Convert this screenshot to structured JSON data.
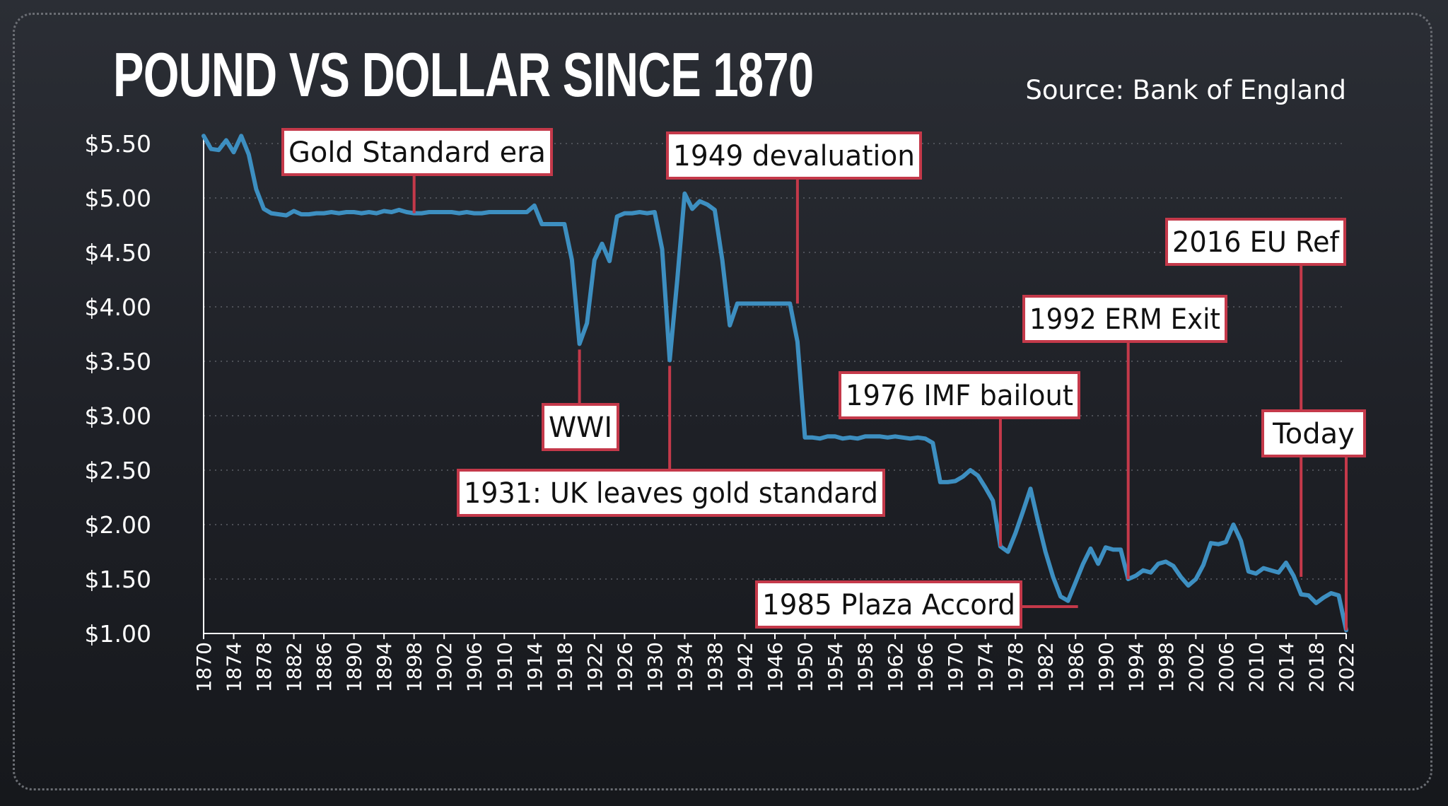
{
  "title": "POUND VS DOLLAR SINCE 1870",
  "source": "Source: Bank of England",
  "colors": {
    "line": "#3d8fc1",
    "annotation_border": "#c4394a",
    "background": "#24272d"
  },
  "chart_data": {
    "type": "line",
    "title": "POUND VS DOLLAR SINCE 1870",
    "xlabel": "",
    "ylabel": "",
    "xlim": [
      1870,
      2022
    ],
    "ylim": [
      1.0,
      5.5
    ],
    "grid": true,
    "y_ticks": [
      5.5,
      5.0,
      4.5,
      4.0,
      3.5,
      3.0,
      2.5,
      2.0,
      1.5,
      1.0
    ],
    "y_tick_labels": [
      "$5.50",
      "$5.00",
      "$4.50",
      "$4.00",
      "$3.50",
      "$3.00",
      "$2.50",
      "$2.00",
      "$1.50",
      "$1.00"
    ],
    "x_tick_labels": [
      "1870",
      "1874",
      "1878",
      "1882",
      "1886",
      "1890",
      "1894",
      "1898",
      "1902",
      "1906",
      "1910",
      "1914",
      "1918",
      "1922",
      "1926",
      "1930",
      "1934",
      "1938",
      "1942",
      "1946",
      "1950",
      "1954",
      "1958",
      "1962",
      "1966",
      "1970",
      "1974",
      "1978",
      "1982",
      "1986",
      "1990",
      "1994",
      "1998",
      "2002",
      "2006",
      "2010",
      "2014",
      "2018",
      "2022"
    ],
    "series": [
      {
        "points": [
          [
            1870,
            5.57
          ],
          [
            1871,
            5.45
          ],
          [
            1872,
            5.44
          ],
          [
            1873,
            5.53
          ],
          [
            1874,
            5.42
          ],
          [
            1875,
            5.57
          ],
          [
            1876,
            5.4
          ],
          [
            1877,
            5.08
          ],
          [
            1878,
            4.9
          ],
          [
            1879,
            4.86
          ],
          [
            1880,
            4.85
          ],
          [
            1881,
            4.84
          ],
          [
            1882,
            4.88
          ],
          [
            1883,
            4.85
          ],
          [
            1884,
            4.85
          ],
          [
            1885,
            4.86
          ],
          [
            1886,
            4.86
          ],
          [
            1887,
            4.87
          ],
          [
            1888,
            4.86
          ],
          [
            1889,
            4.87
          ],
          [
            1890,
            4.87
          ],
          [
            1891,
            4.86
          ],
          [
            1892,
            4.87
          ],
          [
            1893,
            4.86
          ],
          [
            1894,
            4.88
          ],
          [
            1895,
            4.87
          ],
          [
            1896,
            4.89
          ],
          [
            1897,
            4.87
          ],
          [
            1898,
            4.86
          ],
          [
            1899,
            4.86
          ],
          [
            1900,
            4.87
          ],
          [
            1901,
            4.87
          ],
          [
            1902,
            4.87
          ],
          [
            1903,
            4.87
          ],
          [
            1904,
            4.86
          ],
          [
            1905,
            4.87
          ],
          [
            1906,
            4.86
          ],
          [
            1907,
            4.86
          ],
          [
            1908,
            4.87
          ],
          [
            1909,
            4.87
          ],
          [
            1910,
            4.87
          ],
          [
            1911,
            4.87
          ],
          [
            1912,
            4.87
          ],
          [
            1913,
            4.87
          ],
          [
            1914,
            4.93
          ],
          [
            1915,
            4.76
          ],
          [
            1916,
            4.76
          ],
          [
            1917,
            4.76
          ],
          [
            1918,
            4.76
          ],
          [
            1919,
            4.43
          ],
          [
            1920,
            3.66
          ],
          [
            1921,
            3.85
          ],
          [
            1922,
            4.43
          ],
          [
            1923,
            4.58
          ],
          [
            1924,
            4.42
          ],
          [
            1925,
            4.83
          ],
          [
            1926,
            4.86
          ],
          [
            1927,
            4.86
          ],
          [
            1928,
            4.87
          ],
          [
            1929,
            4.86
          ],
          [
            1930,
            4.87
          ],
          [
            1931,
            4.53
          ],
          [
            1932,
            3.51
          ],
          [
            1933,
            4.24
          ],
          [
            1934,
            5.04
          ],
          [
            1935,
            4.9
          ],
          [
            1936,
            4.97
          ],
          [
            1937,
            4.94
          ],
          [
            1938,
            4.89
          ],
          [
            1939,
            4.43
          ],
          [
            1940,
            3.83
          ],
          [
            1941,
            4.03
          ],
          [
            1942,
            4.03
          ],
          [
            1943,
            4.03
          ],
          [
            1944,
            4.03
          ],
          [
            1945,
            4.03
          ],
          [
            1946,
            4.03
          ],
          [
            1947,
            4.03
          ],
          [
            1948,
            4.03
          ],
          [
            1949,
            3.68
          ],
          [
            1950,
            2.8
          ],
          [
            1951,
            2.8
          ],
          [
            1952,
            2.79
          ],
          [
            1953,
            2.81
          ],
          [
            1954,
            2.81
          ],
          [
            1955,
            2.79
          ],
          [
            1956,
            2.8
          ],
          [
            1957,
            2.79
          ],
          [
            1958,
            2.81
          ],
          [
            1959,
            2.81
          ],
          [
            1960,
            2.81
          ],
          [
            1961,
            2.8
          ],
          [
            1962,
            2.81
          ],
          [
            1963,
            2.8
          ],
          [
            1964,
            2.79
          ],
          [
            1965,
            2.8
          ],
          [
            1966,
            2.79
          ],
          [
            1967,
            2.75
          ],
          [
            1968,
            2.39
          ],
          [
            1969,
            2.39
          ],
          [
            1970,
            2.4
          ],
          [
            1971,
            2.44
          ],
          [
            1972,
            2.5
          ],
          [
            1973,
            2.45
          ],
          [
            1974,
            2.34
          ],
          [
            1975,
            2.22
          ],
          [
            1976,
            1.8
          ],
          [
            1977,
            1.75
          ],
          [
            1978,
            1.92
          ],
          [
            1979,
            2.12
          ],
          [
            1980,
            2.33
          ],
          [
            1981,
            2.03
          ],
          [
            1982,
            1.75
          ],
          [
            1983,
            1.52
          ],
          [
            1984,
            1.34
          ],
          [
            1985,
            1.3
          ],
          [
            1986,
            1.47
          ],
          [
            1987,
            1.64
          ],
          [
            1988,
            1.78
          ],
          [
            1989,
            1.64
          ],
          [
            1990,
            1.79
          ],
          [
            1991,
            1.77
          ],
          [
            1992,
            1.77
          ],
          [
            1993,
            1.5
          ],
          [
            1994,
            1.53
          ],
          [
            1995,
            1.58
          ],
          [
            1996,
            1.56
          ],
          [
            1997,
            1.64
          ],
          [
            1998,
            1.66
          ],
          [
            1999,
            1.62
          ],
          [
            2000,
            1.52
          ],
          [
            2001,
            1.44
          ],
          [
            2002,
            1.5
          ],
          [
            2003,
            1.63
          ],
          [
            2004,
            1.83
          ],
          [
            2005,
            1.82
          ],
          [
            2006,
            1.84
          ],
          [
            2007,
            2.0
          ],
          [
            2008,
            1.85
          ],
          [
            2009,
            1.57
          ],
          [
            2010,
            1.55
          ],
          [
            2011,
            1.6
          ],
          [
            2012,
            1.58
          ],
          [
            2013,
            1.56
          ],
          [
            2014,
            1.65
          ],
          [
            2015,
            1.53
          ],
          [
            2016,
            1.36
          ],
          [
            2017,
            1.35
          ],
          [
            2018,
            1.28
          ],
          [
            2019,
            1.33
          ],
          [
            2020,
            1.37
          ],
          [
            2021,
            1.35
          ],
          [
            2022,
            1.03
          ]
        ]
      }
    ],
    "annotations": [
      {
        "text": "Gold Standard era",
        "year": 1898,
        "value": 4.86
      },
      {
        "text": "WWI",
        "year": 1920,
        "value": 3.66
      },
      {
        "text": "1931: UK leaves gold standard",
        "year": 1932,
        "value": 3.51
      },
      {
        "text": "1949 devaluation",
        "year": 1949,
        "value": 4.03
      },
      {
        "text": "1976 IMF bailout",
        "year": 1976,
        "value": 1.8
      },
      {
        "text": "1985 Plaza Accord",
        "year": 1985,
        "value": 1.3
      },
      {
        "text": "1992 ERM Exit",
        "year": 1993,
        "value": 1.5
      },
      {
        "text": "2016 EU Ref",
        "year": 2016,
        "value": 1.52
      },
      {
        "text": "Today",
        "year": 2022,
        "value": 1.03
      }
    ]
  }
}
